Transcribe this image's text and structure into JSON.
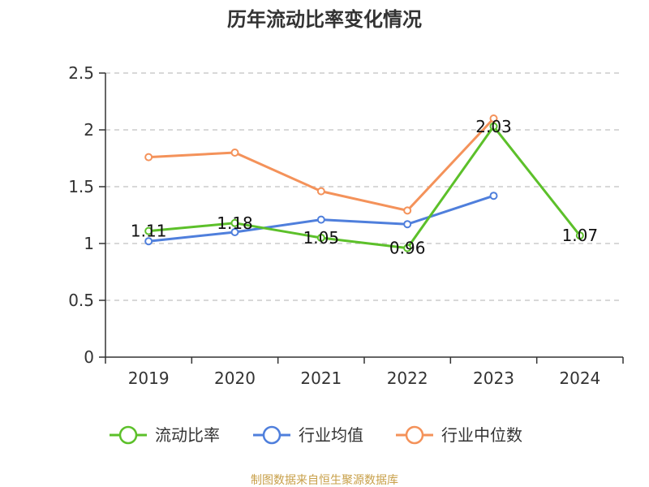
{
  "chart_data": {
    "type": "line",
    "title": "历年流动比率变化情况",
    "categories": [
      "2019",
      "2020",
      "2021",
      "2022",
      "2023",
      "2024"
    ],
    "ylim": [
      0,
      2.5
    ],
    "yticks": [
      "0",
      "0.5",
      "1",
      "1.5",
      "2",
      "2.5"
    ],
    "grid": true,
    "legend_position": "bottom",
    "series": [
      {
        "name": "流动比率",
        "color": "#5cc02a",
        "values": [
          1.11,
          1.18,
          1.05,
          0.96,
          2.03,
          1.07
        ],
        "labels": [
          "1.11",
          "1.18",
          "1.05",
          "0.96",
          "2.03",
          "1.07"
        ]
      },
      {
        "name": "行业均值",
        "color": "#4f7fdc",
        "values": [
          1.02,
          1.1,
          1.21,
          1.17,
          1.42,
          null
        ]
      },
      {
        "name": "行业中位数",
        "color": "#f4925a",
        "values": [
          1.76,
          1.8,
          1.46,
          1.29,
          2.1,
          null
        ]
      }
    ]
  },
  "source": {
    "text": "制图数据来自恒生聚源数据库",
    "color": "#c8a04a"
  }
}
